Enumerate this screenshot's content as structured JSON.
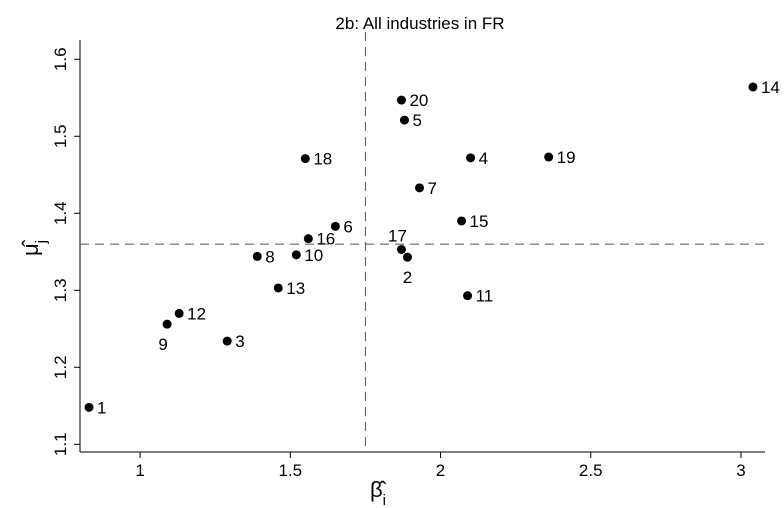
{
  "chart_data": {
    "type": "scatter",
    "title": "2b: All industries in FR",
    "xlabel": "β̂i",
    "ylabel": "μ̂j",
    "xlim": [
      0.8,
      3.08
    ],
    "ylim": [
      1.09,
      1.625
    ],
    "xticks": [
      1,
      1.5,
      2,
      2.5,
      3
    ],
    "yticks": [
      1.1,
      1.2,
      1.3,
      1.4,
      1.5,
      1.6
    ],
    "xtick_labels": [
      "1",
      "1.5",
      "2",
      "2.5",
      "3"
    ],
    "ytick_labels": [
      "1.1",
      "1.2",
      "1.3",
      "1.4",
      "1.5",
      "1.6"
    ],
    "reference_lines": {
      "x": 1.75,
      "y": 1.36
    },
    "grid": false,
    "legend": "none",
    "marker_color": "#000000",
    "points": [
      {
        "label": "1",
        "x": 0.83,
        "y": 1.148,
        "pos": "right"
      },
      {
        "label": "2",
        "x": 1.89,
        "y": 1.343,
        "pos": "below"
      },
      {
        "label": "3",
        "x": 1.29,
        "y": 1.234,
        "pos": "right"
      },
      {
        "label": "4",
        "x": 2.1,
        "y": 1.472,
        "pos": "right"
      },
      {
        "label": "5",
        "x": 1.88,
        "y": 1.521,
        "pos": "right"
      },
      {
        "label": "6",
        "x": 1.65,
        "y": 1.383,
        "pos": "right"
      },
      {
        "label": "7",
        "x": 1.93,
        "y": 1.433,
        "pos": "right"
      },
      {
        "label": "8",
        "x": 1.39,
        "y": 1.344,
        "pos": "right"
      },
      {
        "label": "9",
        "x": 1.09,
        "y": 1.256,
        "pos": "below-left"
      },
      {
        "label": "10",
        "x": 1.52,
        "y": 1.346,
        "pos": "right"
      },
      {
        "label": "11",
        "x": 2.09,
        "y": 1.293,
        "pos": "right"
      },
      {
        "label": "12",
        "x": 1.13,
        "y": 1.27,
        "pos": "right"
      },
      {
        "label": "13",
        "x": 1.46,
        "y": 1.303,
        "pos": "right"
      },
      {
        "label": "14",
        "x": 3.04,
        "y": 1.564,
        "pos": "right"
      },
      {
        "label": "15",
        "x": 2.07,
        "y": 1.39,
        "pos": "right"
      },
      {
        "label": "16",
        "x": 1.56,
        "y": 1.367,
        "pos": "right"
      },
      {
        "label": "17",
        "x": 1.87,
        "y": 1.353,
        "pos": "above"
      },
      {
        "label": "18",
        "x": 1.55,
        "y": 1.471,
        "pos": "right"
      },
      {
        "label": "19",
        "x": 2.36,
        "y": 1.473,
        "pos": "right"
      },
      {
        "label": "20",
        "x": 1.87,
        "y": 1.547,
        "pos": "right"
      }
    ]
  }
}
